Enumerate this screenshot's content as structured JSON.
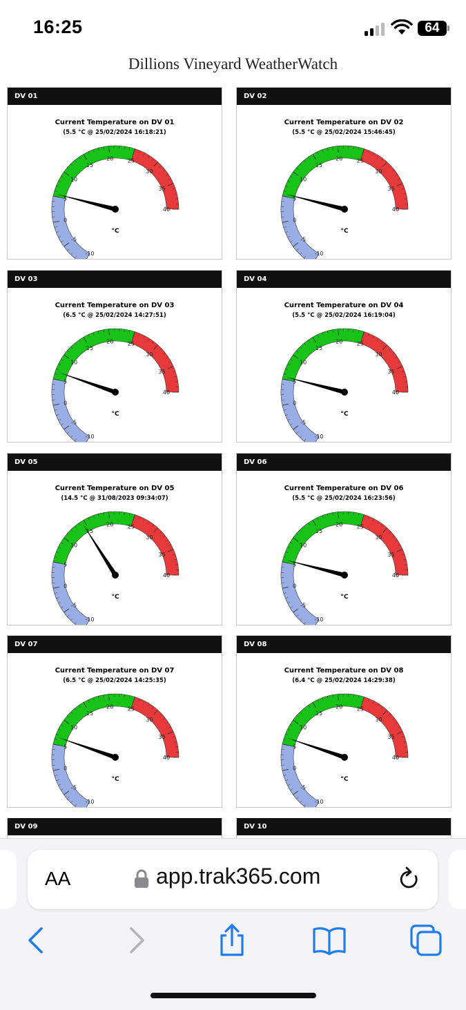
{
  "status_bar": {
    "time": "16:25",
    "battery": "64"
  },
  "page": {
    "title": "Dillions Vineyard WeatherWatch"
  },
  "gauge_scale": {
    "min": -10,
    "max": 40,
    "labels": [
      "-10",
      "-5",
      "0",
      "5",
      "10",
      "15",
      "20",
      "25",
      "30",
      "35",
      "40"
    ],
    "unit": "°C"
  },
  "gauge_bands": [
    {
      "from": -10,
      "to": 5,
      "color": "#9aaee6"
    },
    {
      "from": 5,
      "to": 25,
      "color": "#16c316"
    },
    {
      "from": 25,
      "to": 40,
      "color": "#e83a3a"
    }
  ],
  "cards": [
    {
      "header": "DV 01",
      "title": "Current Temperature on DV 01",
      "subtitle": "(5.5 °C @ 25/02/2024 16:18:21)",
      "value": 5.5
    },
    {
      "header": "DV 02",
      "title": "Current Temperature on DV 02",
      "subtitle": "(5.5 °C @ 25/02/2024 15:46:45)",
      "value": 5.5
    },
    {
      "header": "DV 03",
      "title": "Current Temperature on DV 03",
      "subtitle": "(6.5 °C @ 25/02/2024 14:27:51)",
      "value": 6.5
    },
    {
      "header": "DV 04",
      "title": "Current Temperature on DV 04",
      "subtitle": "(5.5 °C @ 25/02/2024 16:19:04)",
      "value": 5.5
    },
    {
      "header": "DV 05",
      "title": "Current Temperature on DV 05",
      "subtitle": "(14.5 °C @ 31/08/2023 09:34:07)",
      "value": 14.5
    },
    {
      "header": "DV 06",
      "title": "Current Temperature on DV 06",
      "subtitle": "(5.5 °C @ 25/02/2024 16:23:56)",
      "value": 5.5
    },
    {
      "header": "DV 07",
      "title": "Current Temperature on DV 07",
      "subtitle": "(6.5 °C @ 25/02/2024 14:25:35)",
      "value": 6.5
    },
    {
      "header": "DV 08",
      "title": "Current Temperature on DV 08",
      "subtitle": "(6.4 °C @ 25/02/2024 14:29:38)",
      "value": 6.4
    }
  ],
  "partial_cards": [
    {
      "header": "DV 09"
    },
    {
      "header": "DV 10"
    }
  ],
  "browser": {
    "text_size_label": "AA",
    "url": "app.trak365.com"
  },
  "icons": [
    "lock-icon",
    "reload-icon",
    "back-icon",
    "forward-icon",
    "share-icon",
    "bookmarks-icon",
    "tabs-icon",
    "wifi-icon",
    "signal-icon"
  ]
}
